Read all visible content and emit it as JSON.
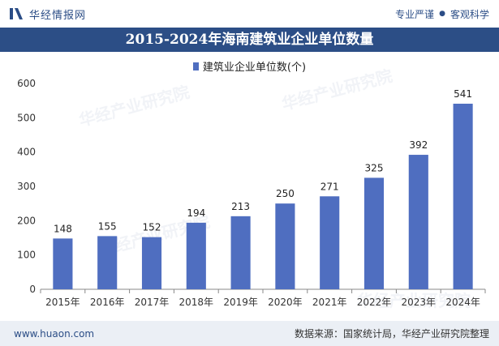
{
  "header": {
    "brand": "华经情报网",
    "slogan_left": "专业严谨",
    "slogan_right": "客观科学"
  },
  "title": "2015-2024年海南建筑业企业单位数量",
  "footer": {
    "url": "www.huaon.com",
    "source": "数据来源：国家统计局，华经产业研究院整理"
  },
  "watermark": "华经产业研究院",
  "colors": {
    "bar": "#4f6ec0",
    "title_bg": "#2c4e86",
    "footer_bg": "#ebeff5"
  },
  "chart_data": {
    "type": "bar",
    "categories": [
      "2015年",
      "2016年",
      "2017年",
      "2018年",
      "2019年",
      "2020年",
      "2021年",
      "2022年",
      "2023年",
      "2024年"
    ],
    "series": [
      {
        "name": "建筑业企业单位数(个)",
        "values": [
          148,
          155,
          152,
          194,
          213,
          250,
          271,
          325,
          392,
          541
        ]
      }
    ],
    "ylim": [
      0,
      600
    ],
    "yticks": [
      0,
      100,
      200,
      300,
      400,
      500,
      600
    ],
    "legend_position": "top-center",
    "grid": false,
    "data_labels": true
  }
}
